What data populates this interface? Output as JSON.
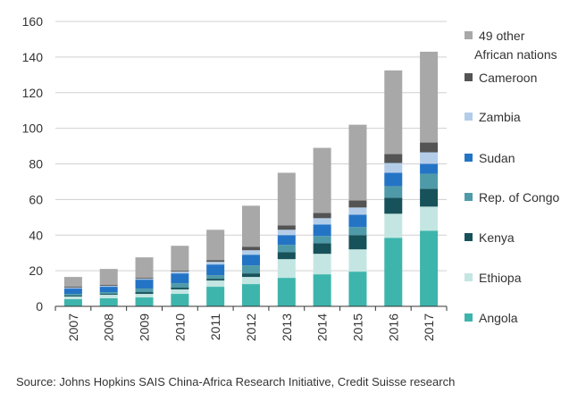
{
  "chart_data": {
    "type": "bar",
    "stacked": true,
    "title": "",
    "xlabel": "",
    "ylabel": "",
    "ylim": [
      0,
      160
    ],
    "yticks": [
      0,
      20,
      40,
      60,
      80,
      100,
      120,
      140,
      160
    ],
    "grid": true,
    "legend_position": "right",
    "categories": [
      "2007",
      "2008",
      "2009",
      "2010",
      "2011",
      "2012",
      "2013",
      "2014",
      "2015",
      "2016",
      "2017"
    ],
    "series": [
      {
        "name": "Angola",
        "color": "#3db5ac",
        "values": [
          4,
          4.5,
          5,
          7,
          11,
          12.5,
          16,
          18,
          19.5,
          38.5,
          42.5
        ]
      },
      {
        "name": "Ethiopa",
        "color": "#c4e6e2",
        "values": [
          1.5,
          2,
          2,
          2.5,
          3.5,
          4,
          10.5,
          11.5,
          12.5,
          13.5,
          13.5
        ]
      },
      {
        "name": "Kenya",
        "color": "#17525a",
        "values": [
          0.5,
          0.5,
          1,
          1,
          1,
          2,
          4,
          6,
          8,
          9,
          10
        ]
      },
      {
        "name": "Rep. of Congo",
        "color": "#4f9aa8",
        "values": [
          1,
          1,
          2,
          2.5,
          2,
          4.5,
          4,
          4,
          4.5,
          6.5,
          8.5
        ]
      },
      {
        "name": "Sudan",
        "color": "#2474c6",
        "values": [
          3,
          3,
          5,
          5.5,
          6,
          6,
          5.5,
          6.5,
          7,
          7.5,
          5.5
        ]
      },
      {
        "name": "Zambia",
        "color": "#b3cde9",
        "values": [
          0.5,
          0.5,
          0.5,
          1,
          1.5,
          2.5,
          3,
          3.5,
          4,
          5.5,
          6.5
        ]
      },
      {
        "name": "Cameroon",
        "color": "#545454",
        "values": [
          0.5,
          0.5,
          0.5,
          0.5,
          1,
          2,
          2.5,
          3,
          4,
          5,
          5.5
        ]
      },
      {
        "name": "49 other African nations",
        "color": "#a8a8a8",
        "values": [
          5.5,
          9,
          11.5,
          14,
          17,
          23,
          29.5,
          36.5,
          42.5,
          47,
          51
        ]
      }
    ]
  },
  "footer": {
    "source": "Source: Johns Hopkins SAIS China-Africa Research Initiative, Credit Suisse research"
  }
}
